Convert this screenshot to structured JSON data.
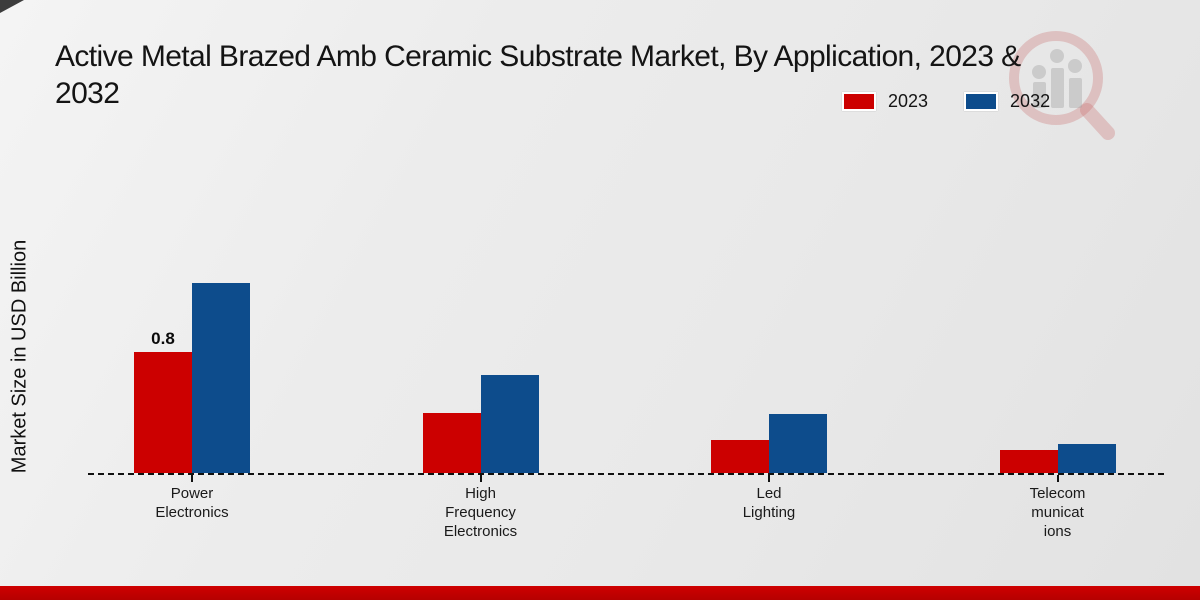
{
  "title": {
    "line1": "Active Metal Brazed Amb Ceramic Substrate Market, By Application, 2023 &",
    "line2": "2032"
  },
  "ylabel": "Market Size in USD Billion",
  "legend": {
    "items": [
      {
        "label": "2023",
        "color": "#cc0000"
      },
      {
        "label": "2032",
        "color": "#0d4c8c"
      }
    ]
  },
  "icons": {
    "watermark": "magnifier-bar-chart-logo"
  },
  "colors": {
    "series_2023": "#cc0000",
    "series_2032": "#0d4c8c",
    "footer_band": "#bf0000",
    "background": "#ebebeb",
    "baseline": "#111111"
  },
  "chart_data": {
    "type": "bar",
    "title": "Active Metal Brazed Amb Ceramic Substrate Market, By Application, 2023 & 2032",
    "xlabel": "",
    "ylabel": "Market Size in USD Billion",
    "categories": [
      "Power Electronics",
      "High Frequency Electronics",
      "Led Lighting",
      "Telecommunications"
    ],
    "category_label_lines": [
      "Power\nElectronics",
      "High\nFrequency\nElectronics",
      "Led\nLighting",
      "Telecom\nmunicat\nions"
    ],
    "series": [
      {
        "name": "2023",
        "color": "#cc0000",
        "values": [
          0.8,
          0.4,
          0.22,
          0.15
        ]
      },
      {
        "name": "2032",
        "color": "#0d4c8c",
        "values": [
          1.26,
          0.65,
          0.39,
          0.19
        ]
      }
    ],
    "annotations": [
      {
        "series_index": 0,
        "category_index": 0,
        "text": "0.8"
      }
    ],
    "ylim": [
      0,
      1.4
    ],
    "grid": false,
    "y_axis_ticks_visible": false,
    "baseline_style": "dashed",
    "legend_position": "top-right"
  }
}
